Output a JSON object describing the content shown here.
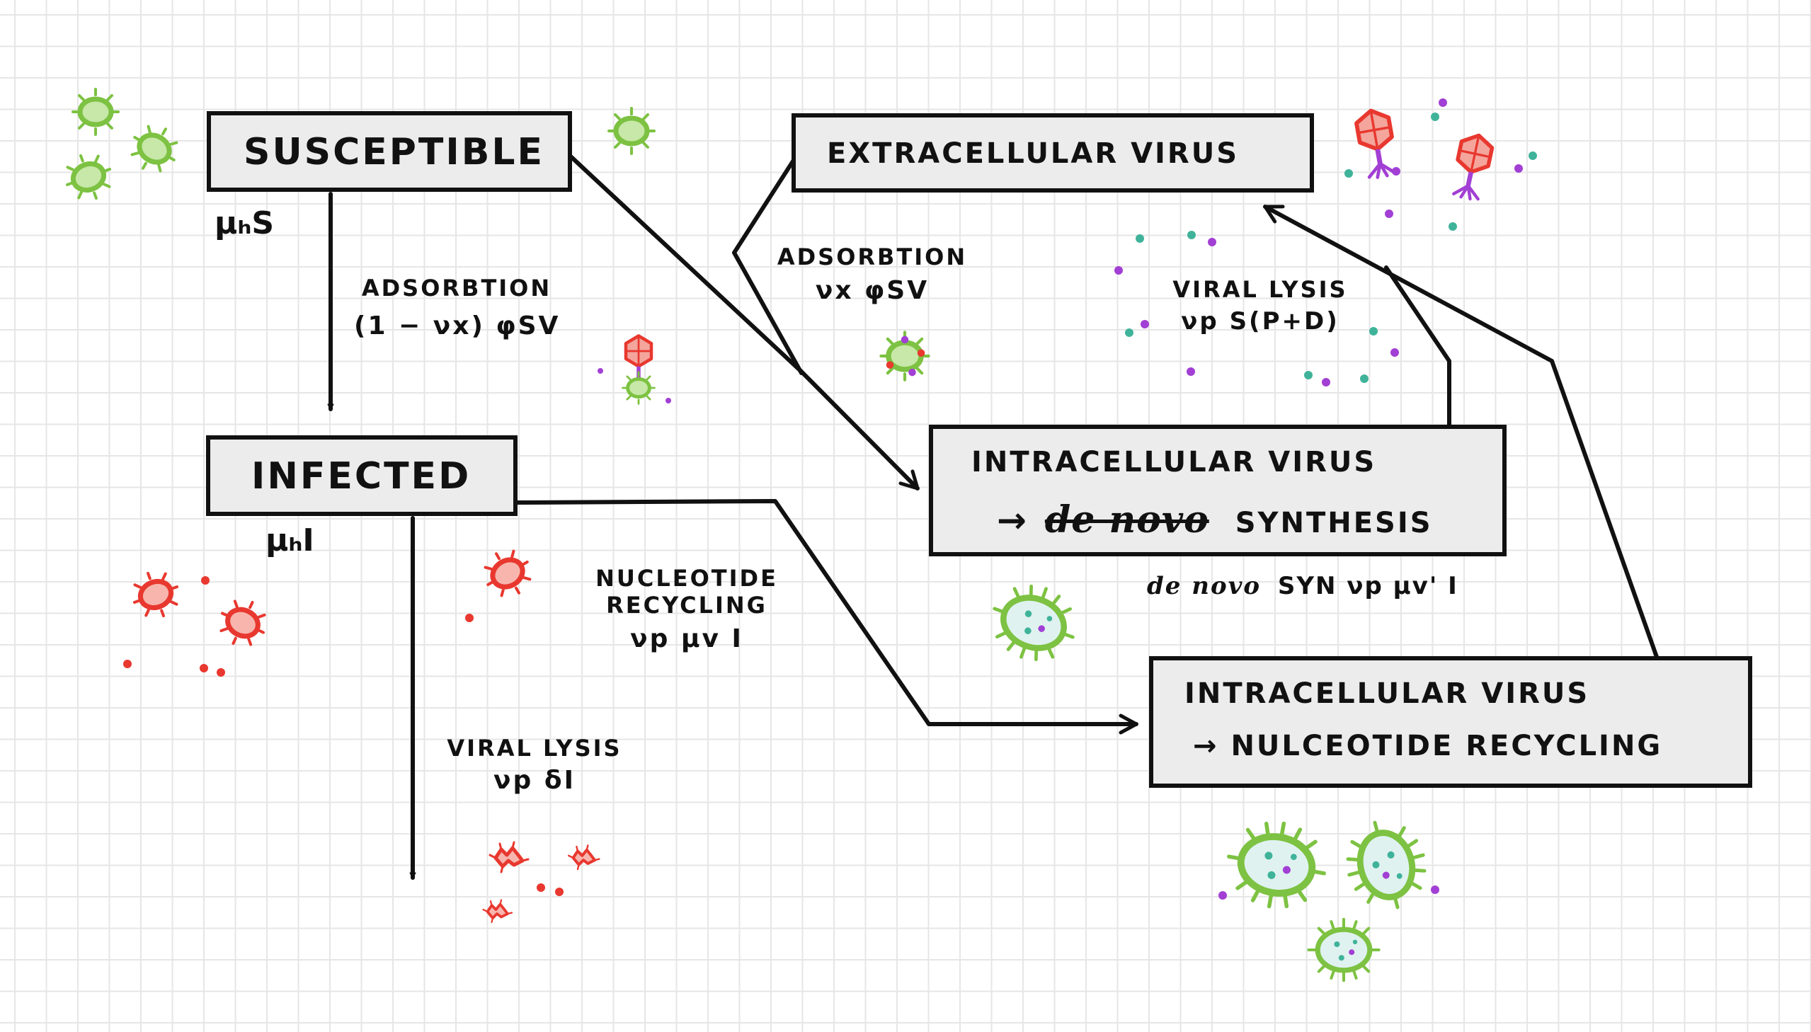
{
  "nodes": {
    "susceptible": {
      "label": "SUSCEPTIBLE",
      "decay": "μₕS"
    },
    "infected": {
      "label": "INFECTED",
      "decay": "μₕI"
    },
    "extracellular": {
      "label": "EXTRACELLULAR VIRUS"
    },
    "intra_denovo": {
      "line1": "INTRACELLULAR VIRUS",
      "arrow": "→",
      "italic": "de novo",
      "rest": "SYNTHESIS"
    },
    "intra_recycling": {
      "line1": "INTRACELLULAR VIRUS",
      "line2": "→ NULCEOTIDE RECYCLING"
    }
  },
  "edges": {
    "adsorption_infected": {
      "title": "ADSORBTION",
      "rate": "(1 − νx) φSV"
    },
    "adsorption_denovo": {
      "title": "ADSORBTION",
      "rate": "νx φSV"
    },
    "viral_lysis_top": {
      "title": "VIRAL LYSIS",
      "rate": "νp S(P+D)"
    },
    "denovo_syn": {
      "italic": "de novo",
      "rest": "SYN νp μv' I"
    },
    "nucleotide_recycling": {
      "title": "NUCLEOTIDE",
      "title2": "RECYCLING",
      "rate": "νp μv I"
    },
    "viral_lysis_bottom": {
      "title": "VIRAL LYSIS",
      "rate": "νp δI"
    }
  },
  "colors": {
    "healthy_bacteria": "#7dc242",
    "infected_bacteria": "#e8382f",
    "phage_head": "#e8382f",
    "phage_tail": "#a23fd4",
    "dot_teal": "#3fb39a",
    "dot_purple": "#a23fd4",
    "line": "#111111",
    "box_fill": "#ececec",
    "grid": "#e6e6e6"
  },
  "icons": [
    "bacteria-icon",
    "infected-bacteria-icon",
    "phage-icon",
    "lysed-bacteria-icon"
  ]
}
